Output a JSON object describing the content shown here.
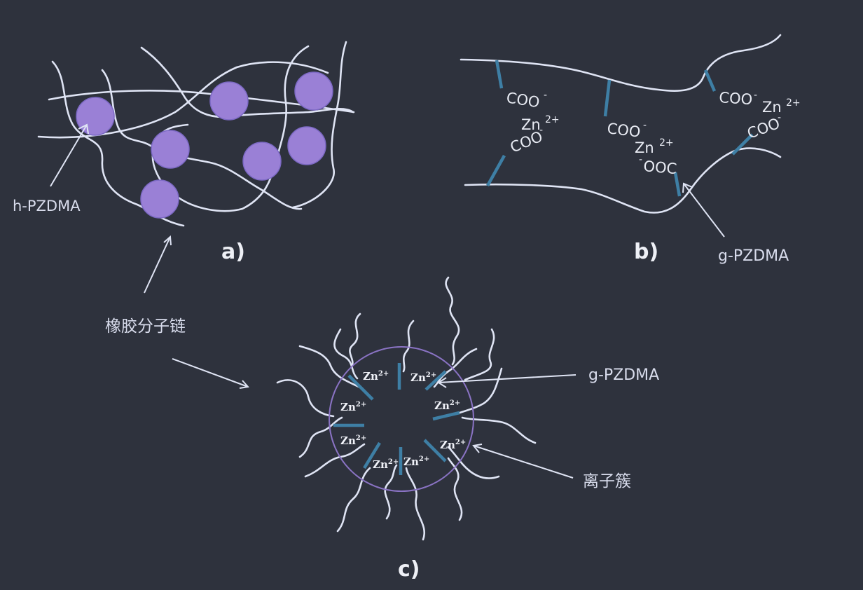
{
  "panel_a": {
    "label": "a)",
    "particle_label": "h-PZDMA",
    "chain_label": "橡胶分子链"
  },
  "panel_b": {
    "label": "b)",
    "coo1": "COO",
    "coo1_sup": "-",
    "zn1": "Zn",
    "zn1_sup": "2+",
    "coo2": "COO",
    "coo2_sup": "-",
    "coo3": "COO",
    "coo3_sup": "-",
    "zn2": "Zn",
    "zn2_sup": "2+",
    "ooc_sup": "-",
    "ooc": "OOC",
    "coo4": "COO",
    "coo4_sup": "-",
    "zn3": "Zn",
    "zn3_sup": "2+",
    "coo5": "COO",
    "coo5_sup": "-",
    "graft_label": "g-PZDMA"
  },
  "panel_c": {
    "label": "c)",
    "ion_base": "Zn",
    "ion_sup": "2+",
    "graft_label": "g-PZDMA",
    "cluster_label": "离子簇"
  },
  "colors": {
    "background": "#2e323d",
    "chain": "#dfe4f4",
    "particle": "#9a80d6",
    "graft": "#3e7fa5",
    "cluster_ring": "#8a73c4"
  }
}
